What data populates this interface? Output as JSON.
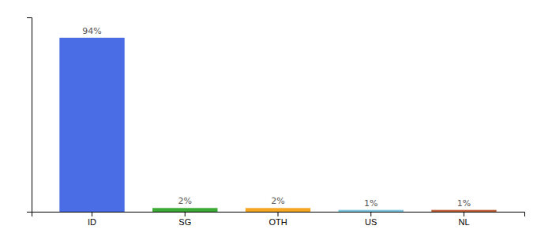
{
  "chart_data": {
    "type": "bar",
    "categories": [
      "ID",
      "SG",
      "OTH",
      "US",
      "NL"
    ],
    "values": [
      94,
      2,
      2,
      1,
      1
    ],
    "value_labels": [
      "94%",
      "2%",
      "2%",
      "1%",
      "1%"
    ],
    "colors": [
      "#4a6de5",
      "#3aaa35",
      "#f5a623",
      "#7ec8e3",
      "#c0623a"
    ],
    "ylim": [
      0,
      105
    ],
    "data_labels": true,
    "tick_labels": "x"
  }
}
